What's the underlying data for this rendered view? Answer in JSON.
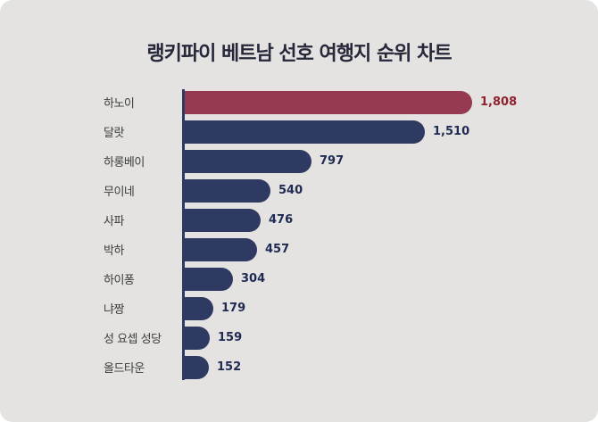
{
  "title": "랭키파이 베트남 선호 여행지 순위 차트",
  "colors": {
    "background": "#e4e3e1",
    "bar": "#2e3a62",
    "highlight_bar": "#963a52",
    "axis": "#2e3a62",
    "value_text": "#1e2a52",
    "highlight_value_text": "#8e2230"
  },
  "chart_data": {
    "type": "bar",
    "orientation": "horizontal",
    "title": "랭키파이 베트남 선호 여행지 순위 차트",
    "categories": [
      "하노이",
      "달랏",
      "하롱베이",
      "무이네",
      "사파",
      "박하",
      "하이퐁",
      "냐짱",
      "성 요셉 성당",
      "올드타운"
    ],
    "values": [
      1808,
      1510,
      797,
      540,
      476,
      457,
      304,
      179,
      159,
      152
    ],
    "value_labels": [
      "1,808",
      "1,510",
      "797",
      "540",
      "476",
      "457",
      "304",
      "179",
      "159",
      "152"
    ],
    "highlight_index": 0,
    "xlim": [
      0,
      1900
    ],
    "grid": false,
    "legend": "none"
  }
}
